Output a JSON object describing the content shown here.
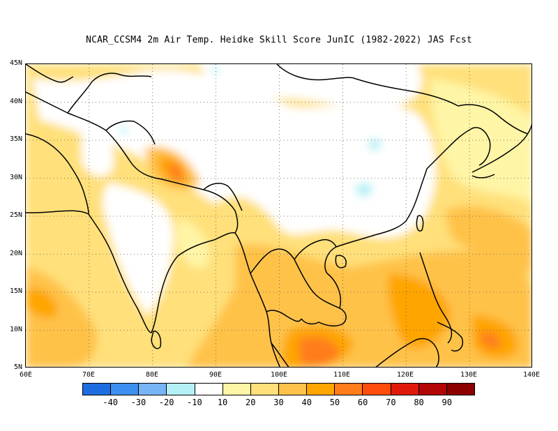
{
  "title": "NCAR_CCSM4  2m Air Temp. Heidke Skill Score JunIC (1982-2022) JAS Fcst",
  "map": {
    "lon_range": [
      60,
      140
    ],
    "lat_range": [
      5,
      45
    ],
    "lat_labels": [
      "45N",
      "40N",
      "35N",
      "30N",
      "25N",
      "20N",
      "15N",
      "10N",
      "5N"
    ],
    "lon_labels": [
      "60E",
      "70E",
      "80E",
      "90E",
      "100E",
      "110E",
      "120E",
      "130E",
      "140E"
    ],
    "gridlines": "dotted"
  },
  "colorbar": {
    "colors": [
      "#1e6de0",
      "#3f8ff0",
      "#78b5f5",
      "#b4f0f5",
      "#ffffff",
      "#fff5a6",
      "#ffe07a",
      "#ffc24a",
      "#ffa500",
      "#ff7d1a",
      "#ff4d0d",
      "#e01a0a",
      "#b20505",
      "#8c0000"
    ],
    "labels": [
      "-40",
      "-30",
      "-20",
      "-10",
      "10",
      "20",
      "30",
      "40",
      "50",
      "60",
      "70",
      "80",
      "90"
    ]
  }
}
